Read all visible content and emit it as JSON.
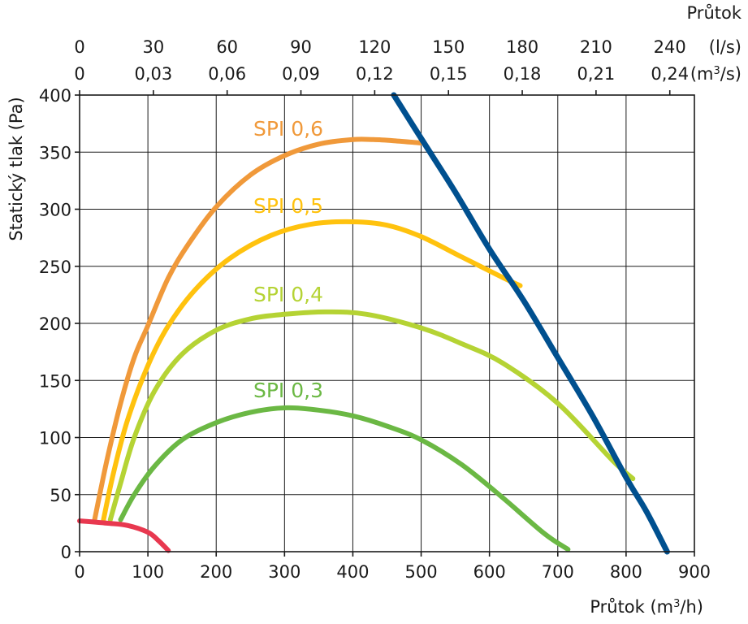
{
  "chart_data": {
    "type": "line",
    "xlabel": "Průtok (m³/h)",
    "ylabel": "Statický tlak (Pa)",
    "top_axis_title": "Průtok",
    "xlim": [
      0,
      900
    ],
    "ylim": [
      0,
      400
    ],
    "grid": true,
    "x_ticks": [
      "0",
      "100",
      "200",
      "300",
      "400",
      "500",
      "600",
      "700",
      "800",
      "900"
    ],
    "y_ticks": [
      "0",
      "50",
      "100",
      "150",
      "200",
      "250",
      "300",
      "350",
      "400"
    ],
    "top_axis_ls": {
      "unit": "(l/s)",
      "ticks": [
        "0",
        "30",
        "60",
        "90",
        "120",
        "150",
        "180",
        "210",
        "240"
      ]
    },
    "top_axis_m3s": {
      "unit": "(m3/s)",
      "ticks": [
        "0",
        "0,03",
        "0,06",
        "0,09",
        "0,12",
        "0,15",
        "0,18",
        "0,21",
        "0,24"
      ]
    },
    "series": [
      {
        "name": "SPI 0,6",
        "color": "#F0993A",
        "x": [
          22,
          40,
          60,
          80,
          100,
          130,
          160,
          200,
          250,
          300,
          350,
          400,
          430,
          460,
          500
        ],
        "y": [
          28,
          80,
          130,
          170,
          198,
          240,
          270,
          302,
          330,
          347,
          357,
          361,
          361,
          360,
          358
        ]
      },
      {
        "name": "SPI 0,5",
        "color": "#FFC20E",
        "x": [
          35,
          50,
          70,
          100,
          130,
          170,
          220,
          280,
          340,
          400,
          450,
          500,
          560,
          620,
          645
        ],
        "y": [
          28,
          70,
          115,
          163,
          198,
          230,
          257,
          277,
          287,
          289,
          286,
          276,
          258,
          240,
          233
        ]
      },
      {
        "name": "SPI 0,4",
        "color": "#B5D334",
        "x": [
          45,
          60,
          80,
          110,
          150,
          200,
          250,
          300,
          360,
          420,
          500,
          560,
          620,
          700,
          780,
          810
        ],
        "y": [
          28,
          60,
          100,
          141,
          173,
          194,
          204,
          208,
          210,
          208,
          196,
          182,
          165,
          130,
          80,
          64
        ]
      },
      {
        "name": "SPI 0,3",
        "color": "#6BB844",
        "x": [
          60,
          80,
          110,
          150,
          200,
          250,
          300,
          350,
          400,
          450,
          500,
          560,
          620,
          680,
          715
        ],
        "y": [
          28,
          50,
          75,
          98,
          113,
          122,
          126,
          124,
          119,
          110,
          98,
          76,
          47,
          16,
          2
        ]
      },
      {
        "name": "",
        "color": "#E8384F",
        "x": [
          0,
          40,
          70,
          100,
          115,
          130
        ],
        "y": [
          27,
          25,
          23,
          17,
          10,
          1
        ]
      },
      {
        "name": "",
        "color": "#00508F",
        "x": [
          460,
          500,
          550,
          600,
          650,
          700,
          750,
          800,
          830,
          860
        ],
        "y": [
          400,
          362,
          315,
          265,
          220,
          170,
          120,
          65,
          35,
          0
        ]
      }
    ]
  }
}
